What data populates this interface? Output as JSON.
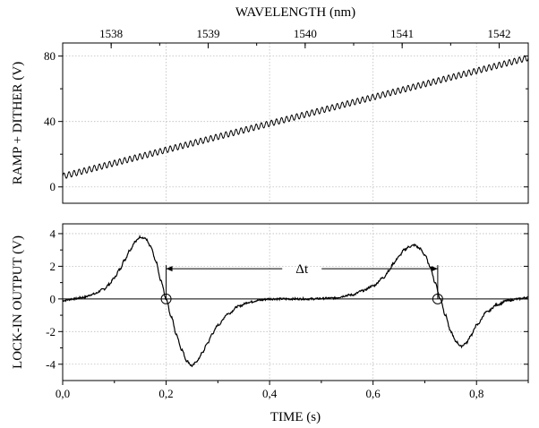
{
  "chart_data": [
    {
      "type": "line",
      "panel": "top",
      "top_axis_label": "WAVELENGTH (nm)",
      "top_ticks": [
        "1538",
        "1539",
        "1540",
        "1541",
        "1542"
      ],
      "top_tick_values": [
        1538,
        1539,
        1540,
        1541,
        1542
      ],
      "top_xlim": [
        1537.5,
        1542.3
      ],
      "ylabel": "RAMP + DITHER (V)",
      "y_ticks": [
        "0",
        "40",
        "80"
      ],
      "y_tick_values": [
        0,
        40,
        80
      ],
      "ylim": [
        -10,
        88
      ],
      "xlim": [
        0,
        0.9
      ],
      "grid": true,
      "series": [
        {
          "x_start": 0.0,
          "x_end": 0.9,
          "y_start": 6.5,
          "y_end": 79,
          "dither_amplitude": 1.8,
          "dither_cycles": 92
        }
      ]
    },
    {
      "type": "line",
      "panel": "bottom",
      "xlabel": "TIME (s)",
      "x_ticks": [
        "0,0",
        "0,2",
        "0,4",
        "0,6",
        "0,8"
      ],
      "x_tick_values": [
        0.0,
        0.2,
        0.4,
        0.6,
        0.8
      ],
      "xlim": [
        0,
        0.9
      ],
      "ylabel": "LOCK-IN OUTPUT (V)",
      "y_ticks": [
        "-4",
        "-2",
        "0",
        "2",
        "4"
      ],
      "y_tick_values": [
        -4,
        -2,
        0,
        2,
        4
      ],
      "ylim": [
        -5,
        4.6
      ],
      "grid": true,
      "annotation": {
        "label": "Δt",
        "x_from": 0.2,
        "x_to": 0.725,
        "y": 1.85
      },
      "zero_crossings": [
        {
          "x": 0.2,
          "y": 0
        },
        {
          "x": 0.725,
          "y": 0
        }
      ],
      "series": [
        {
          "x": [
            0.0,
            0.02,
            0.04,
            0.06,
            0.08,
            0.09,
            0.1,
            0.11,
            0.12,
            0.13,
            0.14,
            0.15,
            0.16,
            0.17,
            0.18,
            0.19,
            0.2,
            0.21,
            0.22,
            0.23,
            0.24,
            0.25,
            0.26,
            0.27,
            0.28,
            0.29,
            0.3,
            0.32,
            0.34,
            0.36,
            0.38,
            0.4,
            0.44,
            0.48,
            0.52,
            0.56,
            0.58,
            0.6,
            0.62,
            0.63,
            0.64,
            0.65,
            0.66,
            0.67,
            0.68,
            0.69,
            0.7,
            0.71,
            0.72,
            0.73,
            0.74,
            0.75,
            0.76,
            0.77,
            0.78,
            0.79,
            0.8,
            0.82,
            0.84,
            0.86,
            0.88,
            0.9
          ],
          "y": [
            -0.1,
            0.0,
            0.1,
            0.3,
            0.6,
            0.9,
            1.3,
            1.8,
            2.4,
            3.0,
            3.5,
            3.8,
            3.7,
            3.2,
            2.3,
            1.1,
            0.0,
            -1.1,
            -2.2,
            -3.1,
            -3.8,
            -4.1,
            -3.8,
            -3.3,
            -2.7,
            -2.1,
            -1.6,
            -0.9,
            -0.45,
            -0.2,
            -0.08,
            0.0,
            0.0,
            0.0,
            0.05,
            0.25,
            0.5,
            0.8,
            1.3,
            1.7,
            2.2,
            2.6,
            3.0,
            3.2,
            3.3,
            3.1,
            2.7,
            2.0,
            1.0,
            0.0,
            -1.0,
            -2.0,
            -2.6,
            -2.9,
            -2.7,
            -2.2,
            -1.6,
            -0.8,
            -0.35,
            -0.1,
            0.0,
            0.1
          ]
        }
      ]
    }
  ]
}
